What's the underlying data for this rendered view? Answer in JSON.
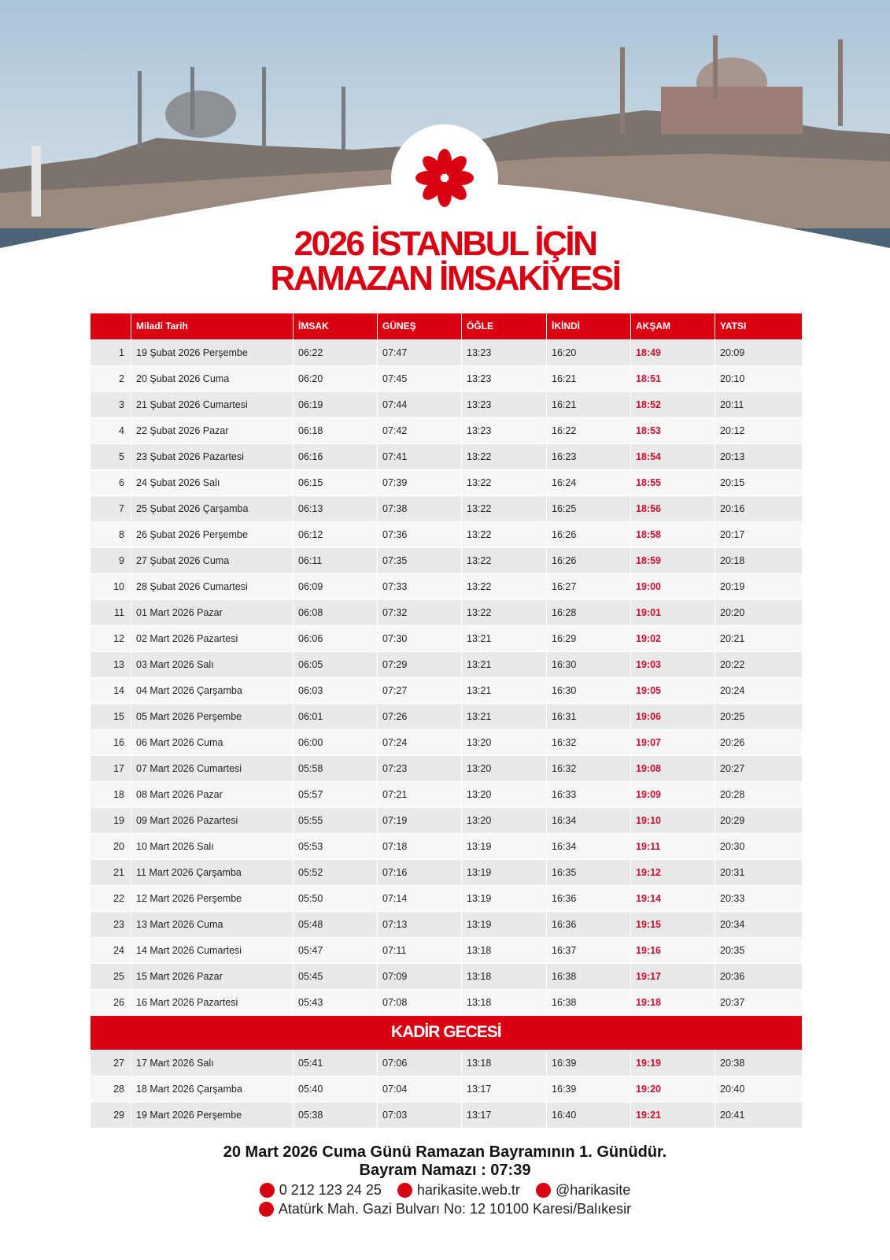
{
  "title": {
    "line1": "2026 İSTANBUL İÇİN",
    "line2": "RAMAZAN İMSAKİYESİ"
  },
  "table": {
    "columns": [
      "Miladi Tarih",
      "İMSAK",
      "GÜNEŞ",
      "ÖĞLE",
      "İKİNDİ",
      "AKŞAM",
      "YATSI"
    ],
    "rows": [
      [
        "1",
        "19 Şubat 2026 Perşembe",
        "06:22",
        "07:47",
        "13:23",
        "16:20",
        "18:49",
        "20:09"
      ],
      [
        "2",
        "20 Şubat 2026 Cuma",
        "06:20",
        "07:45",
        "13:23",
        "16:21",
        "18:51",
        "20:10"
      ],
      [
        "3",
        "21 Şubat 2026 Cumartesi",
        "06:19",
        "07:44",
        "13:23",
        "16:21",
        "18:52",
        "20:11"
      ],
      [
        "4",
        "22 Şubat 2026 Pazar",
        "06:18",
        "07:42",
        "13:23",
        "16:22",
        "18:53",
        "20:12"
      ],
      [
        "5",
        "23 Şubat 2026 Pazartesi",
        "06:16",
        "07:41",
        "13:22",
        "16:23",
        "18:54",
        "20:13"
      ],
      [
        "6",
        "24 Şubat 2026 Salı",
        "06:15",
        "07:39",
        "13:22",
        "16:24",
        "18:55",
        "20:15"
      ],
      [
        "7",
        "25 Şubat 2026 Çarşamba",
        "06:13",
        "07:38",
        "13:22",
        "16:25",
        "18:56",
        "20:16"
      ],
      [
        "8",
        "26 Şubat 2026 Perşembe",
        "06:12",
        "07:36",
        "13:22",
        "16:26",
        "18:58",
        "20:17"
      ],
      [
        "9",
        "27 Şubat 2026 Cuma",
        "06:11",
        "07:35",
        "13:22",
        "16:26",
        "18:59",
        "20:18"
      ],
      [
        "10",
        "28 Şubat 2026 Cumartesi",
        "06:09",
        "07:33",
        "13:22",
        "16:27",
        "19:00",
        "20:19"
      ],
      [
        "11",
        "01 Mart 2026 Pazar",
        "06:08",
        "07:32",
        "13:22",
        "16:28",
        "19:01",
        "20:20"
      ],
      [
        "12",
        "02 Mart 2026 Pazartesi",
        "06:06",
        "07:30",
        "13:21",
        "16:29",
        "19:02",
        "20:21"
      ],
      [
        "13",
        "03 Mart 2026 Salı",
        "06:05",
        "07:29",
        "13:21",
        "16:30",
        "19:03",
        "20:22"
      ],
      [
        "14",
        "04 Mart 2026 Çarşamba",
        "06:03",
        "07:27",
        "13:21",
        "16:30",
        "19:05",
        "20:24"
      ],
      [
        "15",
        "05 Mart 2026 Perşembe",
        "06:01",
        "07:26",
        "13:21",
        "16:31",
        "19:06",
        "20:25"
      ],
      [
        "16",
        "06 Mart 2026 Cuma",
        "06:00",
        "07:24",
        "13:20",
        "16:32",
        "19:07",
        "20:26"
      ],
      [
        "17",
        "07 Mart 2026 Cumartesi",
        "05:58",
        "07:23",
        "13:20",
        "16:32",
        "19:08",
        "20:27"
      ],
      [
        "18",
        "08 Mart 2026 Pazar",
        "05:57",
        "07:21",
        "13:20",
        "16:33",
        "19:09",
        "20:28"
      ],
      [
        "19",
        "09 Mart 2026 Pazartesi",
        "05:55",
        "07:19",
        "13:20",
        "16:34",
        "19:10",
        "20:29"
      ],
      [
        "20",
        "10 Mart 2026 Salı",
        "05:53",
        "07:18",
        "13:19",
        "16:34",
        "19:11",
        "20:30"
      ],
      [
        "21",
        "11 Mart 2026 Çarşamba",
        "05:52",
        "07:16",
        "13:19",
        "16:35",
        "19:12",
        "20:31"
      ],
      [
        "22",
        "12 Mart 2026 Perşembe",
        "05:50",
        "07:14",
        "13:19",
        "16:36",
        "19:14",
        "20:33"
      ],
      [
        "23",
        "13 Mart 2026 Cuma",
        "05:48",
        "07:13",
        "13:19",
        "16:36",
        "19:15",
        "20:34"
      ],
      [
        "24",
        "14 Mart 2026 Cumartesi",
        "05:47",
        "07:11",
        "13:18",
        "16:37",
        "19:16",
        "20:35"
      ],
      [
        "25",
        "15 Mart 2026 Pazar",
        "05:45",
        "07:09",
        "13:18",
        "16:38",
        "19:17",
        "20:36"
      ],
      [
        "26",
        "16 Mart 2026 Pazartesi",
        "05:43",
        "07:08",
        "13:18",
        "16:38",
        "19:18",
        "20:37"
      ]
    ],
    "section": "KADİR GECESİ",
    "section_rows": [
      [
        "27",
        "17 Mart 2026 Salı",
        "05:41",
        "07:06",
        "13:18",
        "16:39",
        "19:19",
        "20:38"
      ],
      [
        "28",
        "18 Mart 2026 Çarşamba",
        "05:40",
        "07:04",
        "13:17",
        "16:39",
        "19:20",
        "20:40"
      ],
      [
        "29",
        "19 Mart 2026 Perşembe",
        "05:38",
        "07:03",
        "13:17",
        "16:40",
        "19:21",
        "20:41"
      ]
    ]
  },
  "footer": {
    "note": "20 Mart 2026 Cuma Günü Ramazan Bayramının 1. Günüdür.",
    "prayer": "Bayram Namazı : 07:39",
    "phone": "0 212 123 24 25",
    "website": "harikasite.web.tr",
    "social": "@harikasite",
    "address": "Atatürk Mah. Gazi Bulvarı No: 12 10100 Karesi/Balıkesir"
  }
}
